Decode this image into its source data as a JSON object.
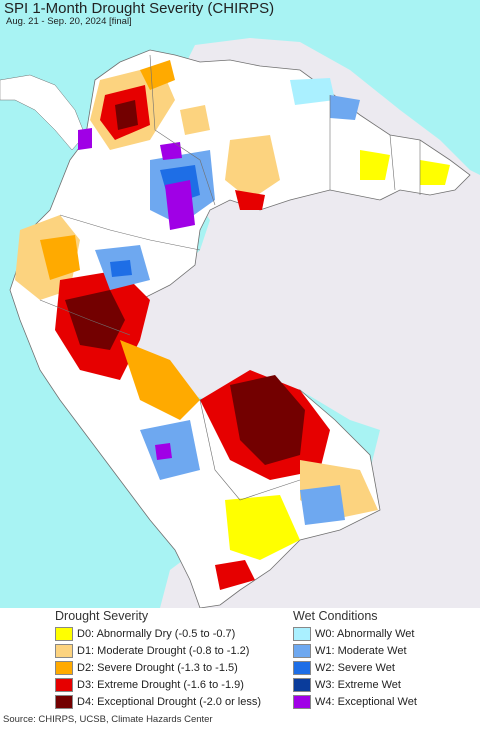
{
  "title": "SPI 1-Month Drought Severity (CHIRPS)",
  "subtitle": "Aug. 21 - Sep. 20, 2024 [final]",
  "colors": {
    "ocean": "#a8f3f3",
    "land_outside": "#eceaf0",
    "land_normal": "#ffffff",
    "border": "#707070"
  },
  "legend": {
    "drought_title": "Drought Severity",
    "wet_title": "Wet Conditions",
    "drought_items": [
      {
        "code": "D0",
        "label": "D0: Abnormally Dry (-0.5 to -0.7)",
        "color": "#ffff00"
      },
      {
        "code": "D1",
        "label": "D1: Moderate Drought (-0.8 to -1.2)",
        "color": "#fcd37f"
      },
      {
        "code": "D2",
        "label": "D2: Severe Drought (-1.3 to -1.5)",
        "color": "#ffaa00"
      },
      {
        "code": "D3",
        "label": "D3: Extreme Drought (-1.6 to -1.9)",
        "color": "#e60000"
      },
      {
        "code": "D4",
        "label": "D4: Exceptional Drought (-2.0 or less)",
        "color": "#730000"
      }
    ],
    "wet_items": [
      {
        "code": "W0",
        "label": "W0: Abnormally Wet",
        "color": "#aaf0ff"
      },
      {
        "code": "W1",
        "label": "W1: Moderate Wet",
        "color": "#6ea8f0"
      },
      {
        "code": "W2",
        "label": "W2: Severe Wet",
        "color": "#1e6ee6"
      },
      {
        "code": "W3",
        "label": "W3: Extreme Wet",
        "color": "#0a3c9b"
      },
      {
        "code": "W4",
        "label": "W4: Exceptional Wet",
        "color": "#a000e6"
      }
    ]
  },
  "source": "Source: CHIRPS, UCSB, Climate Hazards Center"
}
